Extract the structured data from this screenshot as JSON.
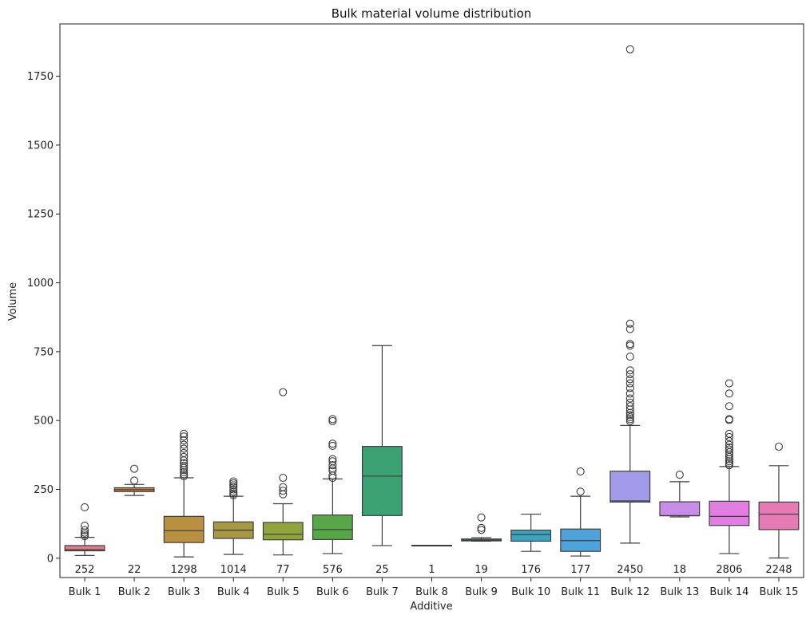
{
  "chart_data": {
    "type": "box",
    "title": "Bulk material volume distribution",
    "xlabel": "Additive",
    "ylabel": "Volume",
    "ylim": [
      -70,
      1940
    ],
    "yticks": [
      0,
      250,
      500,
      750,
      1000,
      1250,
      1500,
      1750
    ],
    "ytick_labels": [
      "0",
      "250",
      "500",
      "750",
      "1000",
      "1250",
      "1500",
      "1750"
    ],
    "grid": false,
    "legend": "none",
    "categories": [
      "Bulk 1",
      "Bulk 2",
      "Bulk 3",
      "Bulk 4",
      "Bulk 5",
      "Bulk 6",
      "Bulk 7",
      "Bulk 8",
      "Bulk 9",
      "Bulk 10",
      "Bulk 11",
      "Bulk 12",
      "Bulk 13",
      "Bulk 14",
      "Bulk 15"
    ],
    "count_labels": [
      "252",
      "22",
      "1298",
      "1014",
      "77",
      "576",
      "25",
      "1",
      "19",
      "176",
      "177",
      "2450",
      "18",
      "2806",
      "2248"
    ],
    "boxes": [
      {
        "q1": 27,
        "median": 31,
        "q3": 46,
        "whisker_low": 10,
        "whisker_high": 76,
        "outliers": [
          80,
          86,
          93,
          102,
          118,
          185
        ],
        "color": "#e07b87"
      },
      {
        "q1": 242,
        "median": 249,
        "q3": 256,
        "whisker_low": 228,
        "whisker_high": 268,
        "outliers": [
          282,
          325
        ],
        "color": "#c98545"
      },
      {
        "q1": 57,
        "median": 100,
        "q3": 152,
        "whisker_low": 5,
        "whisker_high": 292,
        "outliers": [
          298,
          305,
          312,
          320,
          328,
          336,
          345,
          355,
          368,
          382,
          398,
          412,
          428,
          442,
          452
        ],
        "color": "#b8903f"
      },
      {
        "q1": 72,
        "median": 102,
        "q3": 132,
        "whisker_low": 14,
        "whisker_high": 225,
        "outliers": [
          229,
          235,
          242,
          250,
          258,
          265,
          272,
          279
        ],
        "color": "#a79841"
      },
      {
        "q1": 67,
        "median": 87,
        "q3": 130,
        "whisker_low": 12,
        "whisker_high": 198,
        "outliers": [
          232,
          245,
          258,
          292,
          603
        ],
        "color": "#8fa43b"
      },
      {
        "q1": 68,
        "median": 104,
        "q3": 157,
        "whisker_low": 17,
        "whisker_high": 288,
        "outliers": [
          292,
          300,
          318,
          326,
          338,
          352,
          360,
          408,
          416,
          498,
          505
        ],
        "color": "#58a746"
      },
      {
        "q1": 155,
        "median": 298,
        "q3": 406,
        "whisker_low": 46,
        "whisker_high": 772,
        "outliers": [],
        "color": "#3aa273"
      },
      {
        "q1": 47,
        "median": 47,
        "q3": 47,
        "whisker_low": 47,
        "whisker_high": 47,
        "outliers": [],
        "color": "#3ba597"
      },
      {
        "q1": 63,
        "median": 66,
        "q3": 70,
        "whisker_low": 62,
        "whisker_high": 75,
        "outliers": [
          103,
          110,
          148
        ],
        "color": "#3ca3aa"
      },
      {
        "q1": 62,
        "median": 86,
        "q3": 102,
        "whisker_low": 25,
        "whisker_high": 160,
        "outliers": [],
        "color": "#3ba4c1"
      },
      {
        "q1": 25,
        "median": 64,
        "q3": 106,
        "whisker_low": 8,
        "whisker_high": 225,
        "outliers": [
          242,
          315
        ],
        "color": "#4fa3dc"
      },
      {
        "q1": 204,
        "median": 208,
        "q3": 316,
        "whisker_low": 55,
        "whisker_high": 482,
        "outliers": [
          498,
          505,
          512,
          520,
          528,
          540,
          552,
          565,
          580,
          598,
          618,
          635,
          650,
          668,
          682,
          732,
          772,
          778,
          832,
          852,
          1848
        ],
        "color": "#a09ae8"
      },
      {
        "q1": 154,
        "median": 155,
        "q3": 205,
        "whisker_low": 150,
        "whisker_high": 278,
        "outliers": [
          303
        ],
        "color": "#c88de9"
      },
      {
        "q1": 119,
        "median": 152,
        "q3": 207,
        "whisker_low": 17,
        "whisker_high": 333,
        "outliers": [
          338,
          345,
          352,
          360,
          368,
          376,
          385,
          395,
          402,
          412,
          425,
          440,
          452,
          502,
          505,
          552,
          598,
          635
        ],
        "color": "#e27de1"
      },
      {
        "q1": 104,
        "median": 160,
        "q3": 204,
        "whisker_low": 1,
        "whisker_high": 336,
        "outliers": [
          405
        ],
        "color": "#e67ab4"
      }
    ]
  }
}
